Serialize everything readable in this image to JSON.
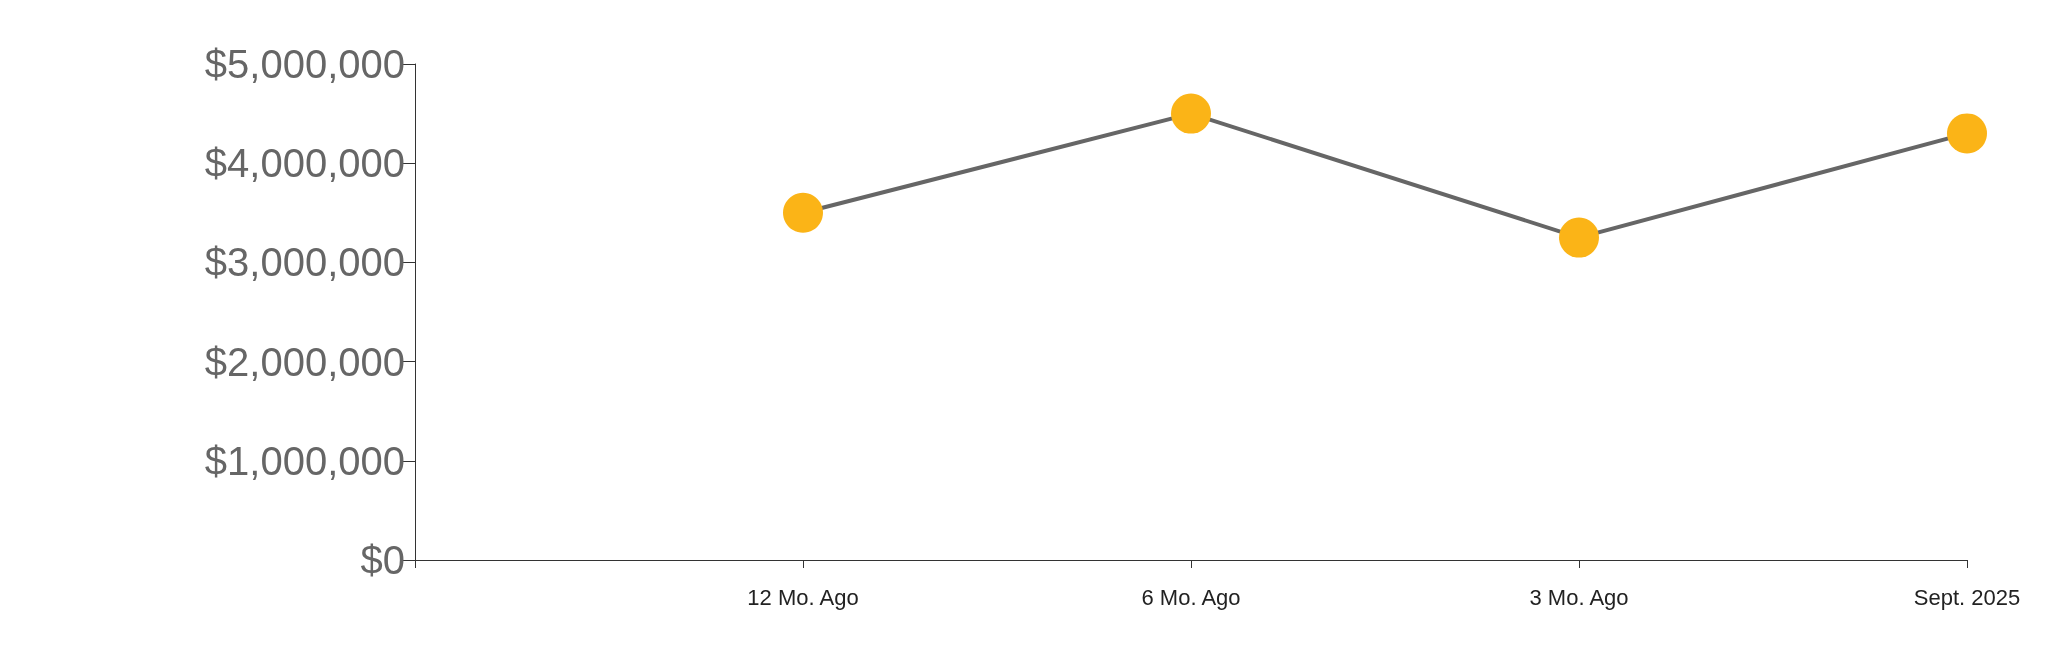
{
  "chart_data": {
    "type": "line",
    "categories": [
      null,
      "12 Mo. Ago",
      "6 Mo. Ago",
      "3 Mo. Ago",
      "Sept. 2025"
    ],
    "series": [
      {
        "color": "#fbb417",
        "values": [
          null,
          3500000,
          4500000,
          3250000,
          4300000
        ]
      }
    ],
    "ylim": [
      0,
      5000000
    ],
    "yticks": [
      {
        "value": 0,
        "label": "$0"
      },
      {
        "value": 1000000,
        "label": "$1,000,000"
      },
      {
        "value": 2000000,
        "label": "$2,000,000"
      },
      {
        "value": 3000000,
        "label": "$3,000,000"
      },
      {
        "value": 4000000,
        "label": "$4,000,000"
      },
      {
        "value": 5000000,
        "label": "$5,000,000"
      }
    ],
    "grid": false,
    "marker": "circle",
    "line_style": "solid"
  }
}
